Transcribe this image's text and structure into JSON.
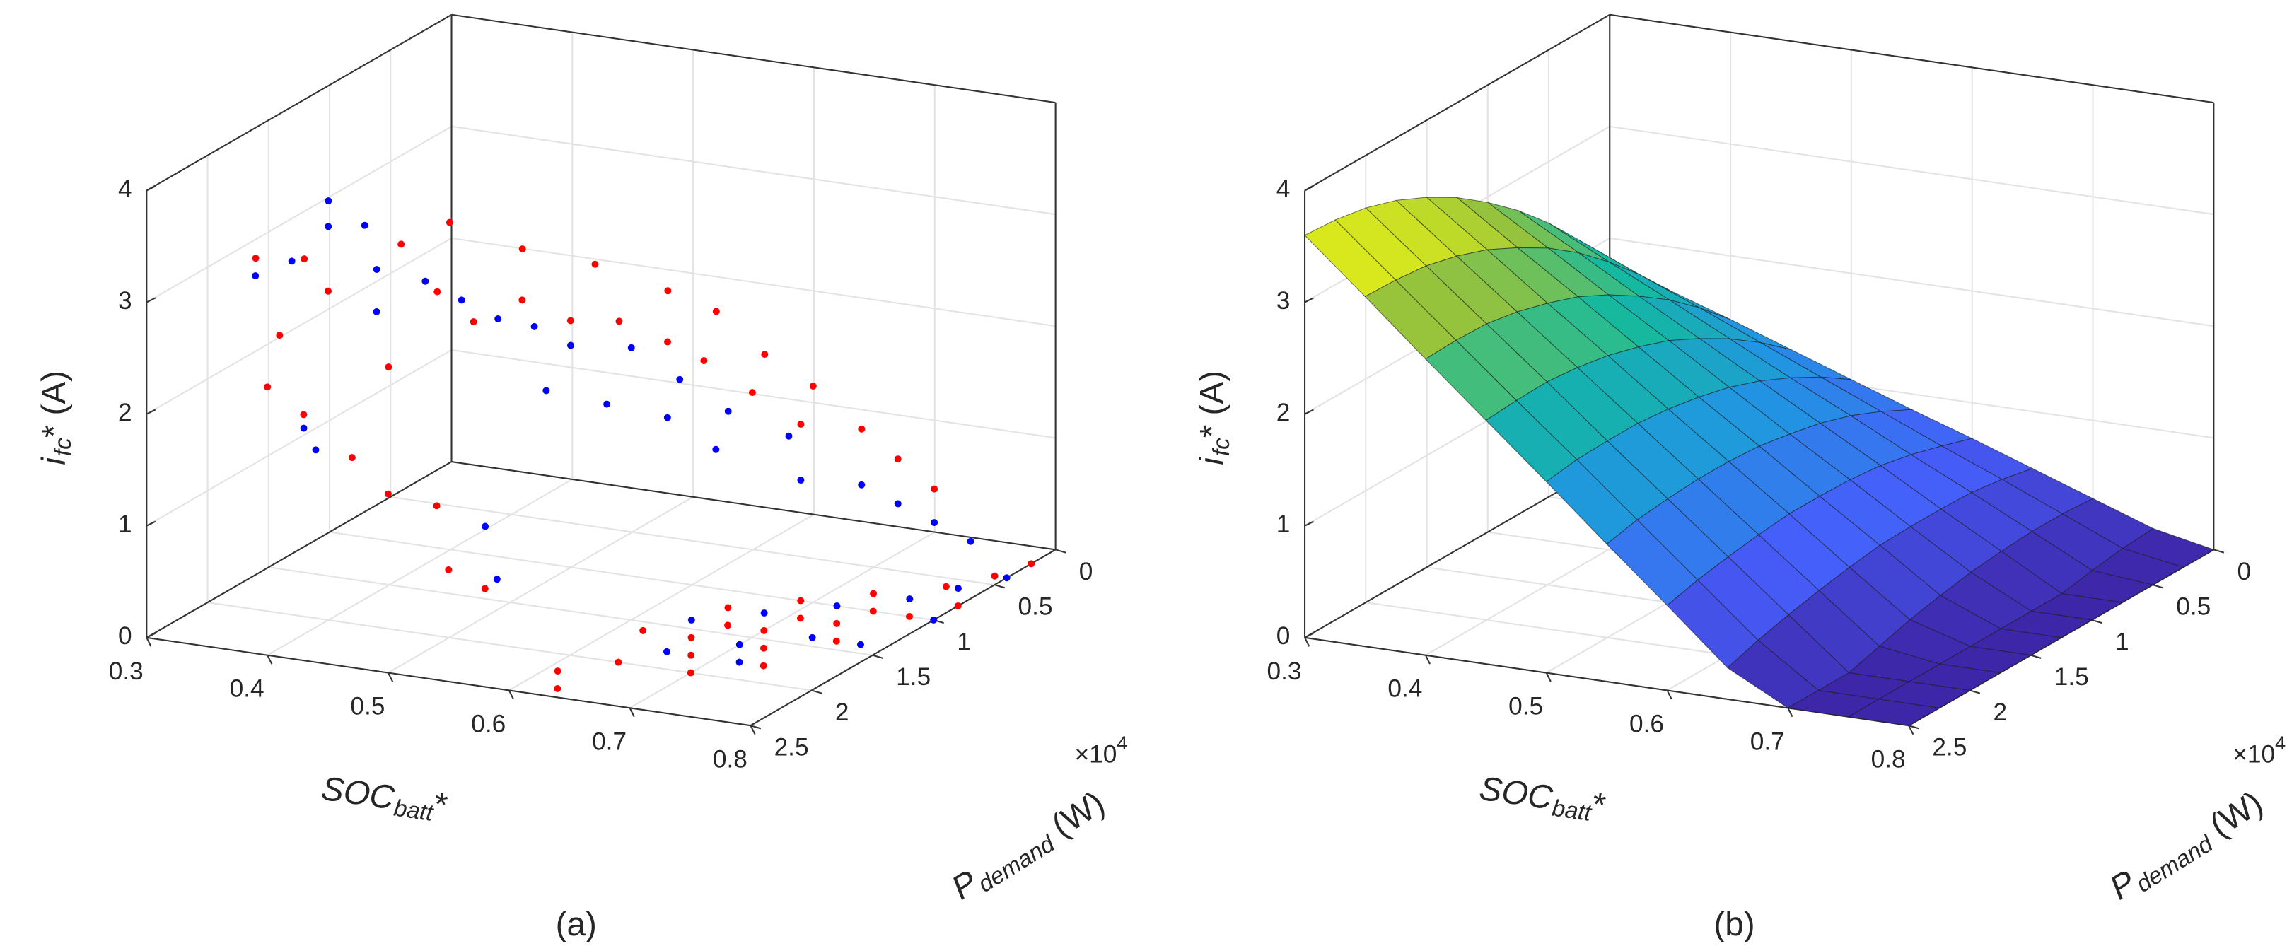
{
  "chart_data": [
    {
      "type": "scatter3d",
      "caption": "(a)",
      "x_label": {
        "main": "SOC",
        "sub": "batt",
        "suffix": "*"
      },
      "y_label": {
        "main": "P",
        "sub": "demand",
        "suffix": " (W)"
      },
      "z_label": {
        "main": "i",
        "sub": "fc",
        "suffix": "* (A)"
      },
      "y_exponent": {
        "base": "×10",
        "power": "4"
      },
      "xlim": [
        0.3,
        0.8
      ],
      "xticks": [
        0.3,
        0.4,
        0.5,
        0.6,
        0.7,
        0.8
      ],
      "ylim": [
        0,
        25000
      ],
      "yticks": [
        0,
        {
          "value": 5000,
          "label": "0.5"
        },
        {
          "value": 10000,
          "label": "1"
        },
        {
          "value": 15000,
          "label": "1.5"
        },
        {
          "value": 20000,
          "label": "2"
        },
        {
          "value": 25000,
          "label": "2.5"
        }
      ],
      "zlim": [
        0,
        4
      ],
      "zticks": [
        0,
        1,
        2,
        3,
        4
      ],
      "grid": true,
      "series": [
        {
          "color": "#0000ff",
          "x": [
            0.4,
            0.41,
            0.4,
            0.42,
            0.38,
            0.44,
            0.46,
            0.45,
            0.48,
            0.5,
            0.52,
            0.54,
            0.55,
            0.57,
            0.58,
            0.6,
            0.61,
            0.63,
            0.64,
            0.66,
            0.68,
            0.7,
            0.72,
            0.74,
            0.76,
            0.42,
            0.44,
            0.55,
            0.58,
            0.64,
            0.68,
            0.7,
            0.72,
            0.74,
            0.76,
            0.78,
            0.8,
            0.8,
            0.78,
            0.66,
            0.72
          ],
          "y": [
            20000,
            21000,
            23000,
            19000,
            24000,
            20000,
            18000,
            21000,
            17000,
            16000,
            15000,
            14000,
            17000,
            12000,
            15000,
            11000,
            13000,
            10000,
            12000,
            8000,
            9000,
            6000,
            5000,
            4000,
            3000,
            24000,
            25000,
            22000,
            24000,
            14000,
            12000,
            16000,
            10000,
            14000,
            8000,
            6000,
            4000,
            10000,
            14000,
            18000,
            18000
          ],
          "z": [
            3.75,
            3.6,
            3.4,
            3.5,
            3.3,
            3.2,
            3.0,
            2.9,
            2.8,
            2.6,
            2.5,
            2.3,
            2.1,
            2.2,
            1.9,
            1.9,
            1.7,
            1.6,
            1.4,
            1.3,
            1.0,
            0.8,
            0.6,
            0.4,
            0.2,
            2.0,
            1.9,
            1.2,
            0.9,
            0,
            0,
            0,
            0,
            0,
            0,
            0,
            0,
            0,
            0,
            0,
            0
          ]
        },
        {
          "color": "#ff0000",
          "x": [
            0.36,
            0.38,
            0.4,
            0.42,
            0.44,
            0.46,
            0.48,
            0.5,
            0.5,
            0.52,
            0.54,
            0.55,
            0.57,
            0.58,
            0.6,
            0.61,
            0.62,
            0.64,
            0.65,
            0.67,
            0.68,
            0.7,
            0.72,
            0.74,
            0.4,
            0.43,
            0.46,
            0.5,
            0.52,
            0.55,
            0.57,
            0.47,
            0.62,
            0.64,
            0.65,
            0.66,
            0.67,
            0.68,
            0.69,
            0.7,
            0.7,
            0.71,
            0.72,
            0.73,
            0.74,
            0.74,
            0.75,
            0.76,
            0.77,
            0.78,
            0.79,
            0.8,
            0.8,
            0.61,
            0.63
          ],
          "y": [
            22000,
            20000,
            24000,
            22000,
            18000,
            16000,
            19000,
            14000,
            18000,
            16000,
            12000,
            15000,
            13000,
            10000,
            12000,
            9000,
            11000,
            8000,
            10000,
            7000,
            9000,
            6000,
            5000,
            4000,
            25000,
            25000,
            24000,
            25000,
            23000,
            25000,
            24000,
            22000,
            16000,
            20000,
            12000,
            16000,
            14000,
            18000,
            10000,
            14000,
            20000,
            12000,
            16000,
            8000,
            12000,
            18000,
            10000,
            14000,
            6000,
            10000,
            4000,
            8000,
            2000,
            22000,
            24000
          ],
          "z": [
            3.3,
            3.2,
            2.8,
            3.1,
            3.3,
            3.4,
            3.0,
            3.1,
            2.7,
            2.8,
            2.9,
            2.6,
            2.5,
            2.6,
            2.3,
            2.4,
            2.1,
            2.0,
            1.8,
            1.7,
            1.5,
            1.3,
            1.0,
            0.7,
            2.4,
            2.2,
            1.8,
            1.6,
            1.4,
            1.0,
            0.8,
            2.5,
            0,
            0,
            0,
            0,
            0,
            0,
            0,
            0,
            0,
            0,
            0,
            0,
            0,
            0,
            0,
            0,
            0,
            0,
            0,
            0,
            0,
            0,
            0
          ]
        }
      ]
    },
    {
      "type": "surface",
      "caption": "(b)",
      "colormap": "parula",
      "x_label": {
        "main": "SOC",
        "sub": "batt",
        "suffix": "*"
      },
      "y_label": {
        "main": "P",
        "sub": "demand",
        "suffix": " (W)"
      },
      "z_label": {
        "main": "i",
        "sub": "fc",
        "suffix": "* (A)"
      },
      "y_exponent": {
        "base": "×10",
        "power": "4"
      },
      "xlim": [
        0.3,
        0.8
      ],
      "xticks": [
        0.3,
        0.4,
        0.5,
        0.6,
        0.7,
        0.8
      ],
      "ylim": [
        0,
        25000
      ],
      "yticks": [
        0,
        {
          "value": 5000,
          "label": "0.5"
        },
        {
          "value": 10000,
          "label": "1"
        },
        {
          "value": 15000,
          "label": "1.5"
        },
        {
          "value": 20000,
          "label": "2"
        },
        {
          "value": 25000,
          "label": "2.5"
        }
      ],
      "zlim": [
        0,
        4
      ],
      "zticks": [
        0,
        1,
        2,
        3,
        4
      ],
      "grid": true,
      "x": [
        0.3,
        0.35,
        0.4,
        0.45,
        0.5,
        0.55,
        0.6,
        0.65,
        0.7,
        0.75,
        0.8
      ],
      "y": [
        0,
        2500,
        5000,
        7500,
        10000,
        12500,
        15000,
        17500,
        20000,
        22500,
        25000
      ],
      "z": [
        [
          1.8,
          1.61,
          1.43,
          1.24,
          1.05,
          0.86,
          0.68,
          0.49,
          0.3,
          0.11,
          0
        ],
        [
          2.14,
          1.91,
          1.69,
          1.46,
          1.23,
          1.0,
          0.77,
          0.55,
          0.32,
          0.09,
          0
        ],
        [
          2.45,
          2.18,
          1.92,
          1.65,
          1.38,
          1.12,
          0.85,
          0.59,
          0.32,
          0.05,
          0
        ],
        [
          2.72,
          2.42,
          2.11,
          1.81,
          1.51,
          1.21,
          0.91,
          0.6,
          0.3,
          0,
          0
        ],
        [
          2.95,
          2.62,
          2.28,
          1.95,
          1.61,
          1.27,
          0.94,
          0.6,
          0.27,
          0,
          0
        ],
        [
          3.15,
          2.78,
          2.42,
          2.05,
          1.68,
          1.32,
          0.95,
          0.59,
          0.22,
          0,
          0
        ],
        [
          3.31,
          2.92,
          2.52,
          2.13,
          1.73,
          1.34,
          0.95,
          0.55,
          0.16,
          0,
          0
        ],
        [
          3.44,
          3.02,
          2.6,
          2.18,
          1.76,
          1.34,
          0.92,
          0.5,
          0.08,
          0,
          0
        ],
        [
          3.53,
          3.09,
          2.65,
          2.21,
          1.76,
          1.32,
          0.88,
          0.44,
          0,
          0,
          0
        ],
        [
          3.58,
          3.12,
          2.66,
          2.2,
          1.75,
          1.29,
          0.83,
          0.37,
          0,
          0,
          0
        ],
        [
          3.6,
          3.13,
          2.65,
          2.18,
          1.71,
          1.23,
          0.76,
          0.28,
          0,
          0,
          0
        ]
      ]
    }
  ]
}
